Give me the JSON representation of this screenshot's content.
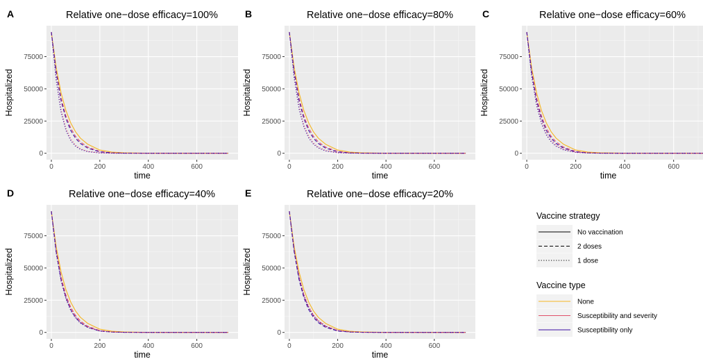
{
  "legend": {
    "strategy_title": "Vaccine strategy",
    "strategy_items": [
      {
        "label": "No vaccination",
        "dash": "solid"
      },
      {
        "label": "2 doses",
        "dash": "dashed"
      },
      {
        "label": "1 dose",
        "dash": "dotted"
      }
    ],
    "type_title": "Vaccine type",
    "type_items": [
      {
        "label": "None",
        "color": "#F5B521"
      },
      {
        "label": "Susceptibility and severity",
        "color": "#E0506A"
      },
      {
        "label": "Susceptibility only",
        "color": "#3A0CA3"
      }
    ]
  },
  "chart_data": [
    {
      "type": "line",
      "panel": "A",
      "title": "Relative one−dose efficacy=100%",
      "xlabel": "time",
      "ylabel": "Hospitalized",
      "xlim": [
        -20,
        770
      ],
      "ylim": [
        -5000,
        99000
      ],
      "xticks": [
        "0",
        "200",
        "400",
        "600"
      ],
      "yticks": [
        "0",
        "25000",
        "50000",
        "75000"
      ],
      "x": [
        0,
        20,
        40,
        60,
        80,
        100,
        120,
        150,
        200,
        250,
        300,
        400,
        730
      ],
      "series": [
        {
          "name": "No vaccination | None",
          "color": "#F5B521",
          "dash": "solid",
          "values": [
            94000,
            66500,
            47000,
            33200,
            23500,
            16600,
            11700,
            7000,
            2500,
            900,
            330,
            50,
            0
          ]
        },
        {
          "name": "2 doses | Susceptibility and severity",
          "color": "#E0506A",
          "dash": "dashed",
          "values": [
            94000,
            64000,
            43000,
            29000,
            19500,
            13100,
            8800,
            4800,
            1400,
            400,
            120,
            10,
            0
          ]
        },
        {
          "name": "2 doses | Susceptibility only",
          "color": "#3A0CA3",
          "dash": "dashed",
          "values": [
            94000,
            62500,
            41000,
            27000,
            17700,
            11600,
            7600,
            4000,
            1100,
            300,
            90,
            8,
            0
          ]
        },
        {
          "name": "1 dose | Susceptibility and severity",
          "color": "#E0506A",
          "dash": "dotted",
          "values": [
            94000,
            58000,
            34000,
            19500,
            11000,
            6200,
            3500,
            1500,
            300,
            60,
            12,
            1,
            0
          ]
        },
        {
          "name": "1 dose | Susceptibility only",
          "color": "#3A0CA3",
          "dash": "dotted",
          "values": [
            94000,
            56500,
            32000,
            17800,
            9800,
            5400,
            3000,
            1200,
            250,
            50,
            10,
            1,
            0
          ]
        }
      ]
    },
    {
      "type": "line",
      "panel": "B",
      "title": "Relative one−dose efficacy=80%",
      "xlabel": "time",
      "ylabel": "Hospitalized",
      "xlim": [
        -20,
        770
      ],
      "ylim": [
        -5000,
        99000
      ],
      "xticks": [
        "0",
        "200",
        "400",
        "600"
      ],
      "yticks": [
        "0",
        "25000",
        "50000",
        "75000"
      ],
      "x": [
        0,
        20,
        40,
        60,
        80,
        100,
        120,
        150,
        200,
        250,
        300,
        400,
        730
      ],
      "series": [
        {
          "name": "No vaccination | None",
          "color": "#F5B521",
          "dash": "solid",
          "values": [
            94000,
            66500,
            47000,
            33200,
            23500,
            16600,
            11700,
            7000,
            2500,
            900,
            330,
            50,
            0
          ]
        },
        {
          "name": "2 doses | Susceptibility and severity",
          "color": "#E0506A",
          "dash": "dashed",
          "values": [
            94000,
            64000,
            43000,
            29000,
            19500,
            13100,
            8800,
            4800,
            1400,
            400,
            120,
            10,
            0
          ]
        },
        {
          "name": "2 doses | Susceptibility only",
          "color": "#3A0CA3",
          "dash": "dashed",
          "values": [
            94000,
            62500,
            41000,
            27000,
            17700,
            11600,
            7600,
            4000,
            1100,
            300,
            90,
            8,
            0
          ]
        },
        {
          "name": "1 dose | Susceptibility and severity",
          "color": "#E0506A",
          "dash": "dotted",
          "values": [
            94000,
            59500,
            36500,
            22000,
            13200,
            7900,
            4700,
            2200,
            500,
            110,
            25,
            2,
            0
          ]
        },
        {
          "name": "1 dose | Susceptibility only",
          "color": "#3A0CA3",
          "dash": "dotted",
          "values": [
            94000,
            58000,
            34500,
            20300,
            11900,
            7000,
            4100,
            1800,
            400,
            90,
            20,
            1,
            0
          ]
        }
      ]
    },
    {
      "type": "line",
      "panel": "C",
      "title": "Relative one−dose efficacy=60%",
      "xlabel": "time",
      "ylabel": "Hospitalized",
      "xlim": [
        -20,
        720
      ],
      "ylim": [
        -5000,
        99000
      ],
      "xticks": [
        "0",
        "200",
        "400",
        "600"
      ],
      "yticks": [
        "0",
        "25000",
        "50000",
        "75000"
      ],
      "x": [
        0,
        20,
        40,
        60,
        80,
        100,
        120,
        150,
        200,
        250,
        300,
        400,
        730
      ],
      "series": [
        {
          "name": "No vaccination | None",
          "color": "#F5B521",
          "dash": "solid",
          "values": [
            94000,
            66500,
            47000,
            33200,
            23500,
            16600,
            11700,
            7000,
            2500,
            900,
            330,
            50,
            0
          ]
        },
        {
          "name": "2 doses | Susceptibility and severity",
          "color": "#E0506A",
          "dash": "dashed",
          "values": [
            94000,
            64000,
            43000,
            29000,
            19500,
            13100,
            8800,
            4800,
            1400,
            400,
            120,
            10,
            0
          ]
        },
        {
          "name": "2 doses | Susceptibility only",
          "color": "#3A0CA3",
          "dash": "dashed",
          "values": [
            94000,
            62500,
            41000,
            27000,
            17700,
            11600,
            7600,
            4000,
            1100,
            300,
            90,
            8,
            0
          ]
        },
        {
          "name": "1 dose | Susceptibility and severity",
          "color": "#E0506A",
          "dash": "dotted",
          "values": [
            94000,
            61000,
            39000,
            24800,
            15700,
            9900,
            6200,
            3100,
            800,
            200,
            50,
            3,
            0
          ]
        },
        {
          "name": "1 dose | Susceptibility only",
          "color": "#3A0CA3",
          "dash": "dotted",
          "values": [
            94000,
            59500,
            37000,
            23000,
            14200,
            8800,
            5400,
            2600,
            650,
            160,
            40,
            2,
            0
          ]
        }
      ]
    },
    {
      "type": "line",
      "panel": "D",
      "title": "Relative one−dose efficacy=40%",
      "xlabel": "time",
      "ylabel": "Hospitalized",
      "xlim": [
        -20,
        770
      ],
      "ylim": [
        -5000,
        99000
      ],
      "xticks": [
        "0",
        "200",
        "400",
        "600"
      ],
      "yticks": [
        "0",
        "25000",
        "50000",
        "75000"
      ],
      "x": [
        0,
        20,
        40,
        60,
        80,
        100,
        120,
        150,
        200,
        250,
        300,
        400,
        730
      ],
      "series": [
        {
          "name": "No vaccination | None",
          "color": "#F5B521",
          "dash": "solid",
          "values": [
            94000,
            66500,
            47000,
            33200,
            23500,
            16600,
            11700,
            7000,
            2500,
            900,
            330,
            50,
            0
          ]
        },
        {
          "name": "2 doses | Susceptibility and severity",
          "color": "#E0506A",
          "dash": "dashed",
          "values": [
            94000,
            64000,
            43000,
            29000,
            19500,
            13100,
            8800,
            4800,
            1400,
            400,
            120,
            10,
            0
          ]
        },
        {
          "name": "2 doses | Susceptibility only",
          "color": "#3A0CA3",
          "dash": "dashed",
          "values": [
            94000,
            62500,
            41000,
            27000,
            17700,
            11600,
            7600,
            4000,
            1100,
            300,
            90,
            8,
            0
          ]
        },
        {
          "name": "1 dose | Susceptibility and severity",
          "color": "#E0506A",
          "dash": "dotted",
          "values": [
            94000,
            62500,
            41500,
            27500,
            18300,
            12100,
            8000,
            4300,
            1200,
            330,
            90,
            7,
            0
          ]
        },
        {
          "name": "1 dose | Susceptibility only",
          "color": "#3A0CA3",
          "dash": "dotted",
          "values": [
            94000,
            61500,
            40000,
            26000,
            17000,
            11100,
            7200,
            3800,
            1000,
            270,
            70,
            5,
            0
          ]
        }
      ]
    },
    {
      "type": "line",
      "panel": "E",
      "title": "Relative one−dose efficacy=20%",
      "xlabel": "time",
      "ylabel": "Hospitalized",
      "xlim": [
        -20,
        770
      ],
      "ylim": [
        -5000,
        99000
      ],
      "xticks": [
        "0",
        "200",
        "400",
        "600"
      ],
      "yticks": [
        "0",
        "25000",
        "50000",
        "75000"
      ],
      "x": [
        0,
        20,
        40,
        60,
        80,
        100,
        120,
        150,
        200,
        250,
        300,
        400,
        730
      ],
      "series": [
        {
          "name": "No vaccination | None",
          "color": "#F5B521",
          "dash": "solid",
          "values": [
            94000,
            66500,
            47000,
            33200,
            23500,
            16600,
            11700,
            7000,
            2500,
            900,
            330,
            50,
            0
          ]
        },
        {
          "name": "2 doses | Susceptibility and severity",
          "color": "#E0506A",
          "dash": "dashed",
          "values": [
            94000,
            64000,
            43000,
            29000,
            19500,
            13100,
            8800,
            4800,
            1400,
            400,
            120,
            10,
            0
          ]
        },
        {
          "name": "2 doses | Susceptibility only",
          "color": "#3A0CA3",
          "dash": "dashed",
          "values": [
            94000,
            62500,
            41000,
            27000,
            17700,
            11600,
            7600,
            4000,
            1100,
            300,
            90,
            8,
            0
          ]
        },
        {
          "name": "1 dose | Susceptibility and severity",
          "color": "#E0506A",
          "dash": "dotted",
          "values": [
            94000,
            64000,
            43500,
            29600,
            20100,
            13700,
            9300,
            5200,
            1600,
            480,
            140,
            12,
            0
          ]
        },
        {
          "name": "1 dose | Susceptibility only",
          "color": "#3A0CA3",
          "dash": "dotted",
          "values": [
            94000,
            63000,
            42200,
            28300,
            19000,
            12700,
            8500,
            4600,
            1350,
            390,
            110,
            9,
            0
          ]
        }
      ]
    }
  ]
}
